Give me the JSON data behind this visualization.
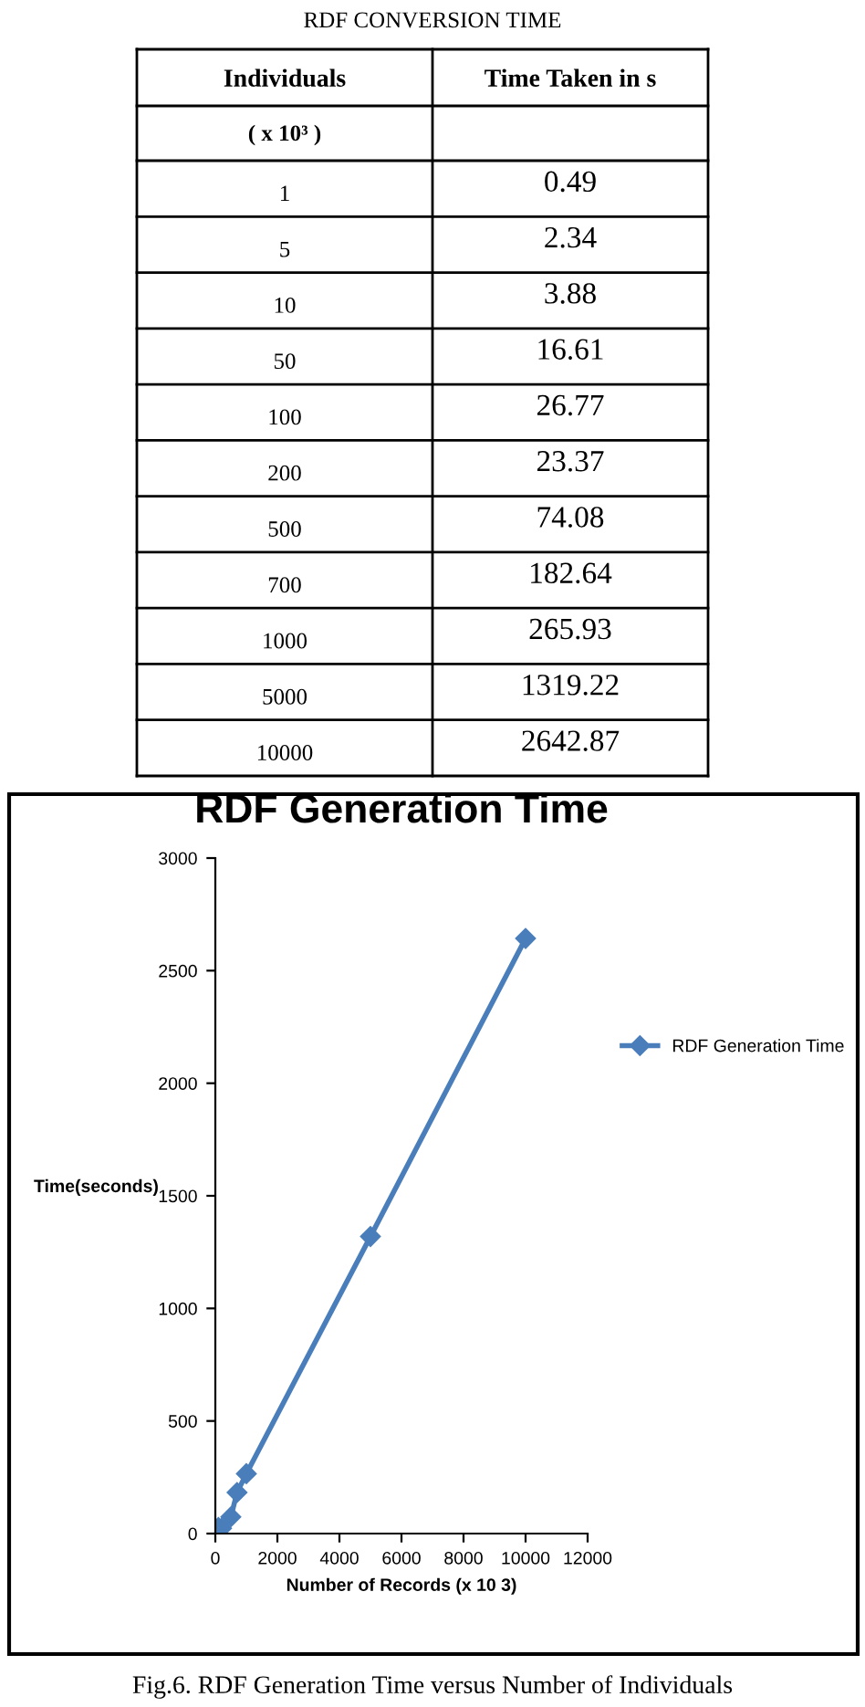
{
  "chart_data": [
    {
      "type": "other",
      "title": "RDF CONVERSION TIME",
      "annotations": [
        "Individuals",
        "Time Taken in s",
        "( x 10³ )",
        "1",
        "0.49",
        "5",
        "2.34",
        "10",
        "3.88",
        "50",
        "16.61",
        "100",
        "26.77",
        "200",
        "23.37",
        "500",
        "74.08",
        "700",
        "182.64",
        "1000",
        "265.93",
        "5000",
        "1319.22",
        "10000",
        "2642.87"
      ]
    },
    {
      "type": "line",
      "title": "RDF Generation Time",
      "xlabel": "Number of Records (x 10 3)",
      "ylabel": "Time(seconds)",
      "annotations": [
        "Fig.6. RDF Generation Time versus Number of Individuals"
      ],
      "x": [
        1,
        5,
        10,
        50,
        100,
        200,
        500,
        700,
        1000,
        5000,
        10000
      ],
      "series": [
        {
          "name": "RDF Generation Time",
          "color": "#4a7ebb",
          "values": [
            0.49,
            2.34,
            3.88,
            16.61,
            26.77,
            23.37,
            74.08,
            182.64,
            265.93,
            1319.22,
            2642.87
          ]
        }
      ],
      "marker": "diamond",
      "line_style": "solid",
      "legend": "right",
      "xlim": [
        0,
        12000
      ],
      "xticks": [
        0,
        2000,
        4000,
        6000,
        8000,
        10000,
        12000
      ],
      "ylim": [
        0,
        3000
      ],
      "yticks": [
        0,
        500,
        1000,
        1500,
        2000,
        2500,
        3000
      ]
    }
  ]
}
